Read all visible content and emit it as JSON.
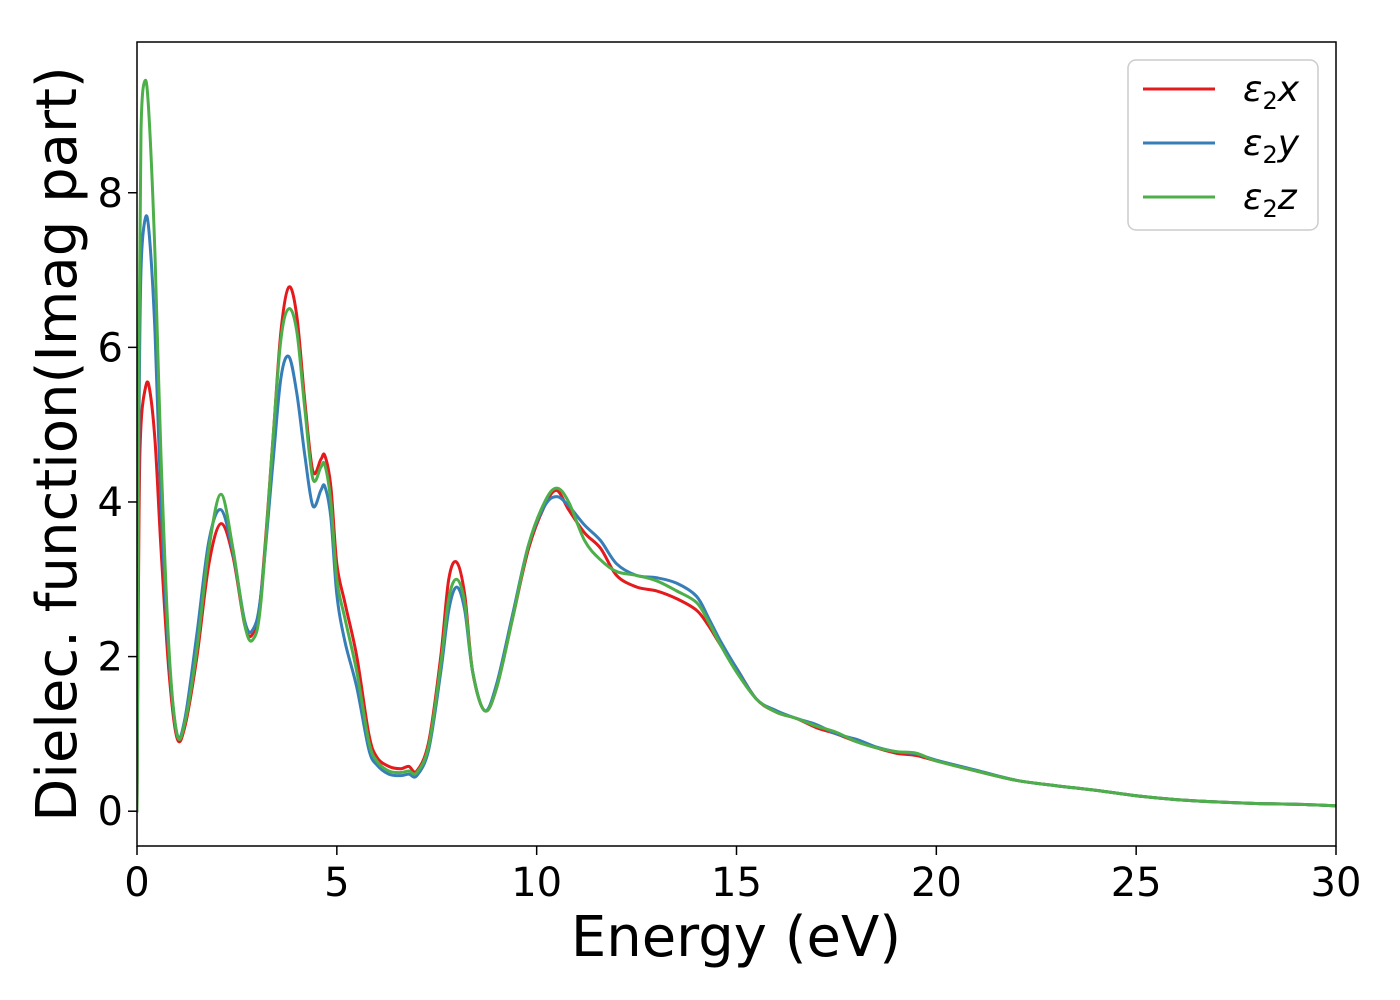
{
  "chart_data": {
    "type": "line",
    "xlabel": "Energy (eV)",
    "ylabel": "Dielec. function(Imag part)",
    "xlim": [
      0,
      30
    ],
    "ylim": [
      -0.45,
      9.95
    ],
    "xticks": [
      0,
      5,
      10,
      15,
      20,
      25,
      30
    ],
    "yticks": [
      0,
      2,
      4,
      6,
      8
    ],
    "grid": false,
    "legend_position": "top-right",
    "series": [
      {
        "name": "ε₂x",
        "legend": {
          "base": "ε",
          "sub": "2",
          "tail": "x"
        },
        "color": "#e41a1c",
        "x": [
          0,
          0.05,
          0.1,
          0.2,
          0.3,
          0.45,
          0.6,
          0.8,
          1.0,
          1.2,
          1.5,
          1.8,
          2.1,
          2.4,
          2.7,
          2.9,
          3.1,
          3.4,
          3.6,
          3.8,
          4.0,
          4.2,
          4.4,
          4.6,
          4.7,
          4.85,
          5.0,
          5.2,
          5.5,
          5.8,
          6.0,
          6.3,
          6.6,
          6.8,
          7.0,
          7.3,
          7.6,
          7.8,
          8.0,
          8.2,
          8.4,
          8.7,
          9.0,
          9.4,
          9.8,
          10.2,
          10.5,
          10.8,
          11.2,
          11.6,
          12.0,
          12.5,
          13.0,
          13.5,
          14.0,
          14.3,
          14.6,
          15.0,
          15.5,
          16.0,
          16.5,
          17.0,
          17.5,
          18.0,
          18.5,
          19.0,
          19.5,
          20.0,
          21.0,
          22.0,
          23.0,
          24.0,
          25.0,
          26.0,
          27.0,
          28.0,
          29.0,
          30.0
        ],
        "y": [
          0.0,
          3.8,
          5.0,
          5.45,
          5.5,
          4.8,
          3.4,
          1.8,
          0.95,
          1.1,
          2.0,
          3.2,
          3.72,
          3.3,
          2.4,
          2.3,
          2.8,
          4.8,
          6.2,
          6.78,
          6.4,
          5.3,
          4.4,
          4.55,
          4.6,
          4.2,
          3.2,
          2.7,
          2.0,
          1.0,
          0.7,
          0.58,
          0.55,
          0.58,
          0.52,
          0.9,
          2.0,
          3.0,
          3.22,
          2.8,
          1.8,
          1.3,
          1.6,
          2.5,
          3.4,
          3.95,
          4.15,
          3.9,
          3.6,
          3.4,
          3.05,
          2.9,
          2.85,
          2.75,
          2.6,
          2.4,
          2.15,
          1.85,
          1.45,
          1.28,
          1.2,
          1.08,
          1.0,
          0.9,
          0.82,
          0.75,
          0.72,
          0.65,
          0.52,
          0.4,
          0.33,
          0.27,
          0.2,
          0.15,
          0.12,
          0.1,
          0.09,
          0.07
        ]
      },
      {
        "name": "ε₂y",
        "legend": {
          "base": "ε",
          "sub": "2",
          "tail": "y"
        },
        "color": "#377eb8",
        "x": [
          0,
          0.05,
          0.1,
          0.2,
          0.3,
          0.45,
          0.6,
          0.8,
          1.0,
          1.2,
          1.5,
          1.8,
          2.1,
          2.4,
          2.7,
          2.9,
          3.1,
          3.4,
          3.6,
          3.8,
          4.0,
          4.2,
          4.4,
          4.6,
          4.7,
          4.85,
          5.0,
          5.2,
          5.5,
          5.8,
          6.0,
          6.3,
          6.6,
          6.8,
          7.0,
          7.3,
          7.6,
          7.8,
          8.0,
          8.2,
          8.4,
          8.7,
          9.0,
          9.4,
          9.8,
          10.2,
          10.5,
          10.8,
          11.2,
          11.6,
          12.0,
          12.5,
          13.0,
          13.5,
          14.0,
          14.3,
          14.6,
          15.0,
          15.5,
          16.0,
          16.5,
          17.0,
          17.5,
          18.0,
          18.5,
          19.0,
          19.5,
          20.0,
          21.0,
          22.0,
          23.0,
          24.0,
          25.0,
          26.0,
          27.0,
          28.0,
          29.0,
          30.0
        ],
        "y": [
          0.0,
          5.0,
          7.0,
          7.65,
          7.5,
          6.2,
          4.0,
          2.0,
          1.0,
          1.2,
          2.3,
          3.5,
          3.9,
          3.35,
          2.45,
          2.35,
          2.8,
          4.5,
          5.6,
          5.88,
          5.4,
          4.6,
          3.95,
          4.15,
          4.2,
          3.8,
          2.8,
          2.2,
          1.6,
          0.8,
          0.6,
          0.48,
          0.46,
          0.48,
          0.46,
          0.8,
          1.8,
          2.6,
          2.9,
          2.6,
          1.8,
          1.3,
          1.65,
          2.55,
          3.45,
          3.95,
          4.07,
          3.95,
          3.7,
          3.5,
          3.2,
          3.05,
          3.02,
          2.95,
          2.78,
          2.5,
          2.2,
          1.85,
          1.45,
          1.3,
          1.2,
          1.12,
          1.0,
          0.93,
          0.83,
          0.77,
          0.74,
          0.66,
          0.53,
          0.4,
          0.33,
          0.27,
          0.2,
          0.15,
          0.12,
          0.1,
          0.09,
          0.07
        ]
      },
      {
        "name": "ε₂z",
        "legend": {
          "base": "ε",
          "sub": "2",
          "tail": "z"
        },
        "color": "#4daf4a",
        "x": [
          0,
          0.05,
          0.1,
          0.2,
          0.3,
          0.45,
          0.6,
          0.8,
          1.0,
          1.2,
          1.5,
          1.8,
          2.1,
          2.4,
          2.7,
          2.9,
          3.1,
          3.4,
          3.6,
          3.8,
          4.0,
          4.2,
          4.4,
          4.6,
          4.7,
          4.85,
          5.0,
          5.2,
          5.5,
          5.8,
          6.0,
          6.3,
          6.6,
          6.8,
          7.0,
          7.3,
          7.6,
          7.8,
          8.0,
          8.2,
          8.4,
          8.7,
          9.0,
          9.4,
          9.8,
          10.2,
          10.5,
          10.8,
          11.2,
          11.6,
          12.0,
          12.5,
          13.0,
          13.5,
          14.0,
          14.3,
          14.6,
          15.0,
          15.5,
          16.0,
          16.5,
          17.0,
          17.5,
          18.0,
          18.5,
          19.0,
          19.5,
          20.0,
          21.0,
          22.0,
          23.0,
          24.0,
          25.0,
          26.0,
          27.0,
          28.0,
          29.0,
          30.0
        ],
        "y": [
          0.0,
          6.0,
          8.8,
          9.45,
          9.0,
          7.2,
          4.6,
          2.1,
          1.0,
          1.15,
          2.1,
          3.4,
          4.1,
          3.4,
          2.4,
          2.22,
          2.7,
          4.8,
          6.1,
          6.5,
          6.2,
          5.2,
          4.3,
          4.45,
          4.48,
          4.0,
          3.0,
          2.5,
          1.8,
          0.9,
          0.65,
          0.52,
          0.5,
          0.52,
          0.5,
          0.85,
          1.9,
          2.75,
          3.0,
          2.7,
          1.8,
          1.3,
          1.6,
          2.5,
          3.45,
          4.0,
          4.18,
          4.0,
          3.5,
          3.25,
          3.1,
          3.05,
          2.98,
          2.85,
          2.7,
          2.45,
          2.15,
          1.8,
          1.45,
          1.28,
          1.2,
          1.1,
          1.02,
          0.9,
          0.82,
          0.77,
          0.75,
          0.65,
          0.52,
          0.4,
          0.33,
          0.27,
          0.2,
          0.15,
          0.12,
          0.1,
          0.09,
          0.07
        ]
      }
    ]
  }
}
